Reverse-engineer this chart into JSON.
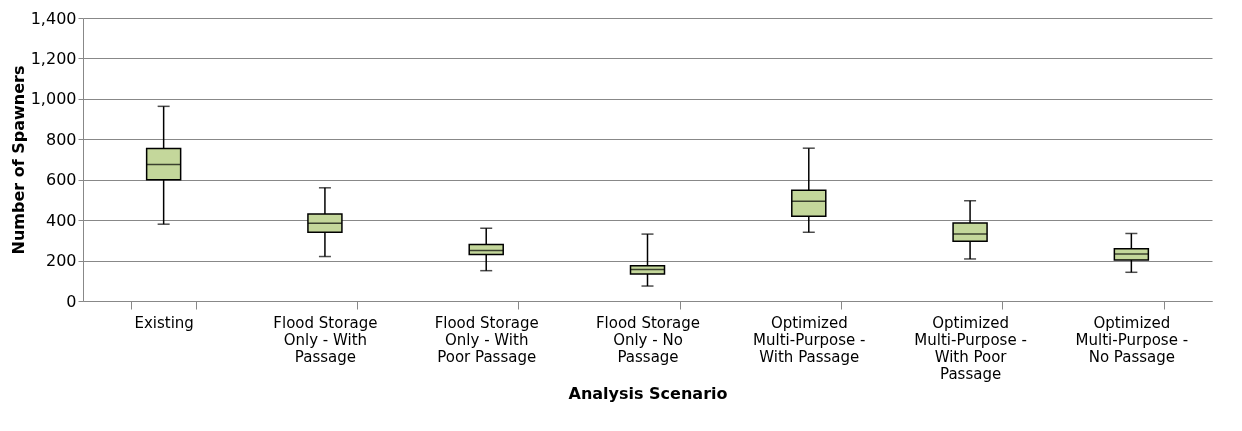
{
  "chart_data": {
    "type": "box",
    "categories": [
      "Existing",
      "Flood Storage Only - With Passage",
      "Flood Storage Only - With Poor Passage",
      "Flood Storage Only - No Passage",
      "Optimized Multi-Purpose - With Passage",
      "Optimized Multi-Purpose - With Poor Passage",
      "Optimized Multi-Purpose - No Passage"
    ],
    "boxes": [
      {
        "low": 380,
        "q1": 600,
        "median": 675,
        "q3": 755,
        "high": 963
      },
      {
        "low": 220,
        "q1": 340,
        "median": 385,
        "q3": 430,
        "high": 560
      },
      {
        "low": 150,
        "q1": 230,
        "median": 250,
        "q3": 280,
        "high": 360
      },
      {
        "low": 74,
        "q1": 134,
        "median": 156,
        "q3": 175,
        "high": 331
      },
      {
        "low": 340,
        "q1": 419,
        "median": 493,
        "q3": 548,
        "high": 756
      },
      {
        "low": 208,
        "q1": 296,
        "median": 331,
        "q3": 386,
        "high": 496
      },
      {
        "low": 142,
        "q1": 203,
        "median": 233,
        "q3": 258,
        "high": 334
      }
    ],
    "color": "#c4d79b",
    "xlabel": "Analysis Scenario",
    "ylabel": "Number of Spawners",
    "ylim": [
      0,
      1400
    ],
    "yticks": [
      {
        "value": 0,
        "label": "0"
      },
      {
        "value": 200,
        "label": "200"
      },
      {
        "value": 400,
        "label": "400"
      },
      {
        "value": 600,
        "label": "600"
      },
      {
        "value": 800,
        "label": "800"
      },
      {
        "value": 1000,
        "label": "1,000"
      },
      {
        "value": 1200,
        "label": "1,200"
      },
      {
        "value": 1400,
        "label": "1,400"
      }
    ],
    "grid": "y"
  }
}
